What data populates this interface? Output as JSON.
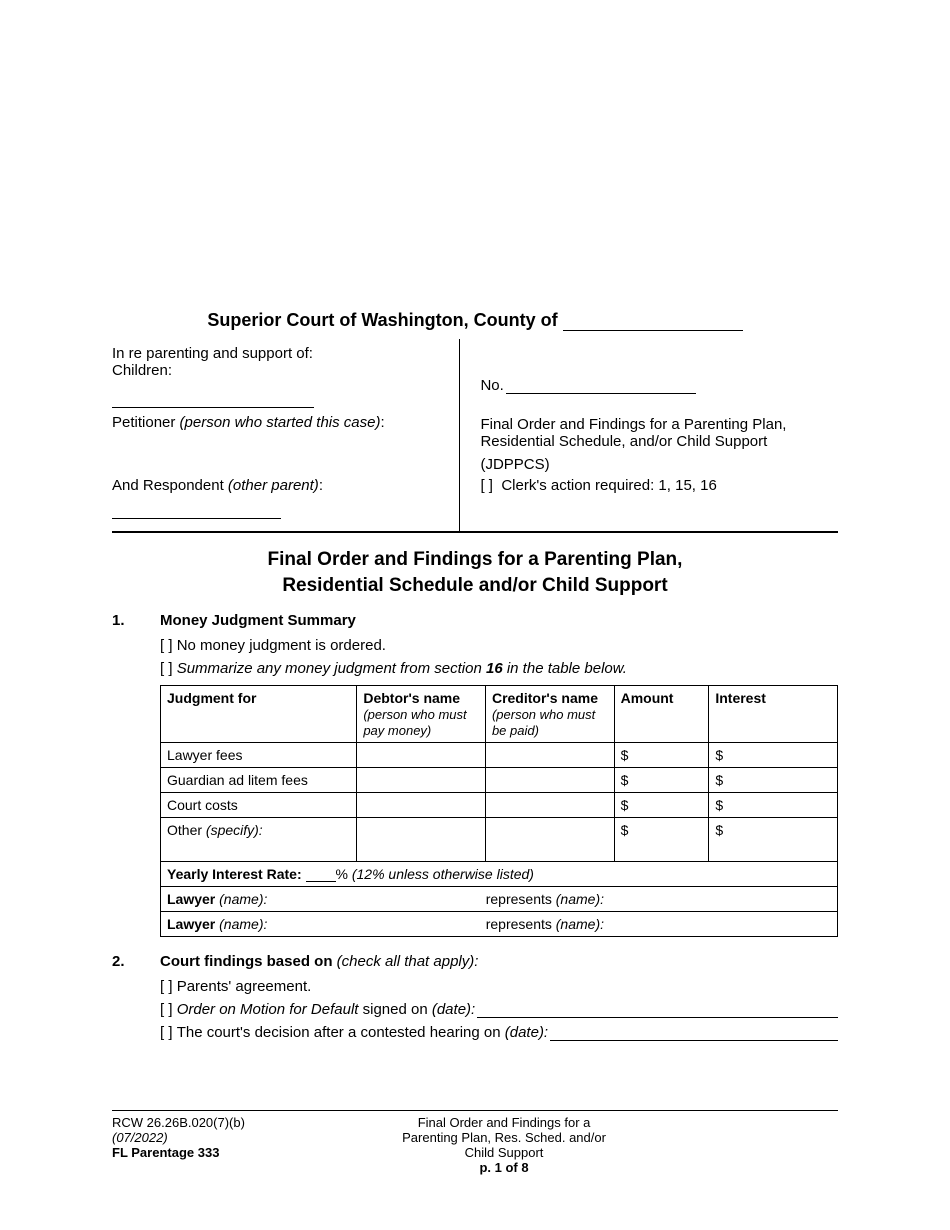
{
  "court_header_prefix": "Superior Court of Washington, County of ",
  "caption": {
    "in_re": "In re parenting and support of:",
    "children_label": "Children:",
    "petitioner_label": "Petitioner ",
    "petitioner_note": "(person who started this case)",
    "respondent_label": "And Respondent ",
    "respondent_note": "(other parent)",
    "no_label": "No.",
    "case_title": "Final Order and Findings for a Parenting Plan, Residential Schedule, and/or Child Support",
    "form_code": "(JDPPCS)",
    "clerk_action": "Clerk's action required: 1, 15, 16"
  },
  "doc_title_l1": "Final Order and Findings for a Parenting Plan,",
  "doc_title_l2": "Residential Schedule and/or Child Support",
  "section1": {
    "num": "1.",
    "heading": "Money Judgment Summary",
    "opt_a": "No money judgment is ordered.",
    "opt_b_pre": "Summarize any money judgment from section ",
    "opt_b_bold": "16",
    "opt_b_post": " in the table below.",
    "table": {
      "h_judgment": "Judgment for",
      "h_debtor": "Debtor's name",
      "h_debtor_sub": "(person who must pay money)",
      "h_creditor": "Creditor's name",
      "h_creditor_sub": "(person who must be paid)",
      "h_amount": "Amount",
      "h_interest": "Interest",
      "rows": [
        {
          "label": "Lawyer fees",
          "amount": "$",
          "interest": "$"
        },
        {
          "label": "Guardian ad litem fees",
          "amount": "$",
          "interest": "$"
        },
        {
          "label": "Court costs",
          "amount": "$",
          "interest": "$"
        }
      ],
      "other_label": "Other ",
      "other_spec": "(specify):",
      "other_amount": "$",
      "other_interest": "$",
      "yearly_rate_label": "Yearly Interest Rate: ",
      "yearly_rate_suffix": "% ",
      "yearly_rate_note": "(12% unless otherwise listed)",
      "lawyer_label": "Lawyer ",
      "lawyer_name_note": "(name):",
      "represents": "represents ",
      "represents_note": "(name):"
    }
  },
  "section2": {
    "num": "2.",
    "heading": "Court findings based on ",
    "heading_note": "(check all that apply):",
    "opt_a": "Parents' agreement.",
    "opt_b_pre": "Order on Motion for Default",
    "opt_b_mid": " signed on ",
    "opt_b_note": "(date):",
    "opt_c_pre": "The court's decision after a contested hearing on ",
    "opt_c_note": "(date):"
  },
  "footer": {
    "rcw": "RCW 26.26B.020(7)(b)",
    "date": "(07/2022)",
    "form": "FL Parentage 333",
    "title_l1": "Final Order and Findings for a",
    "title_l2": "Parenting Plan, Res. Sched. and/or",
    "title_l3": "Child Support",
    "page": "p. 1 of 8"
  }
}
